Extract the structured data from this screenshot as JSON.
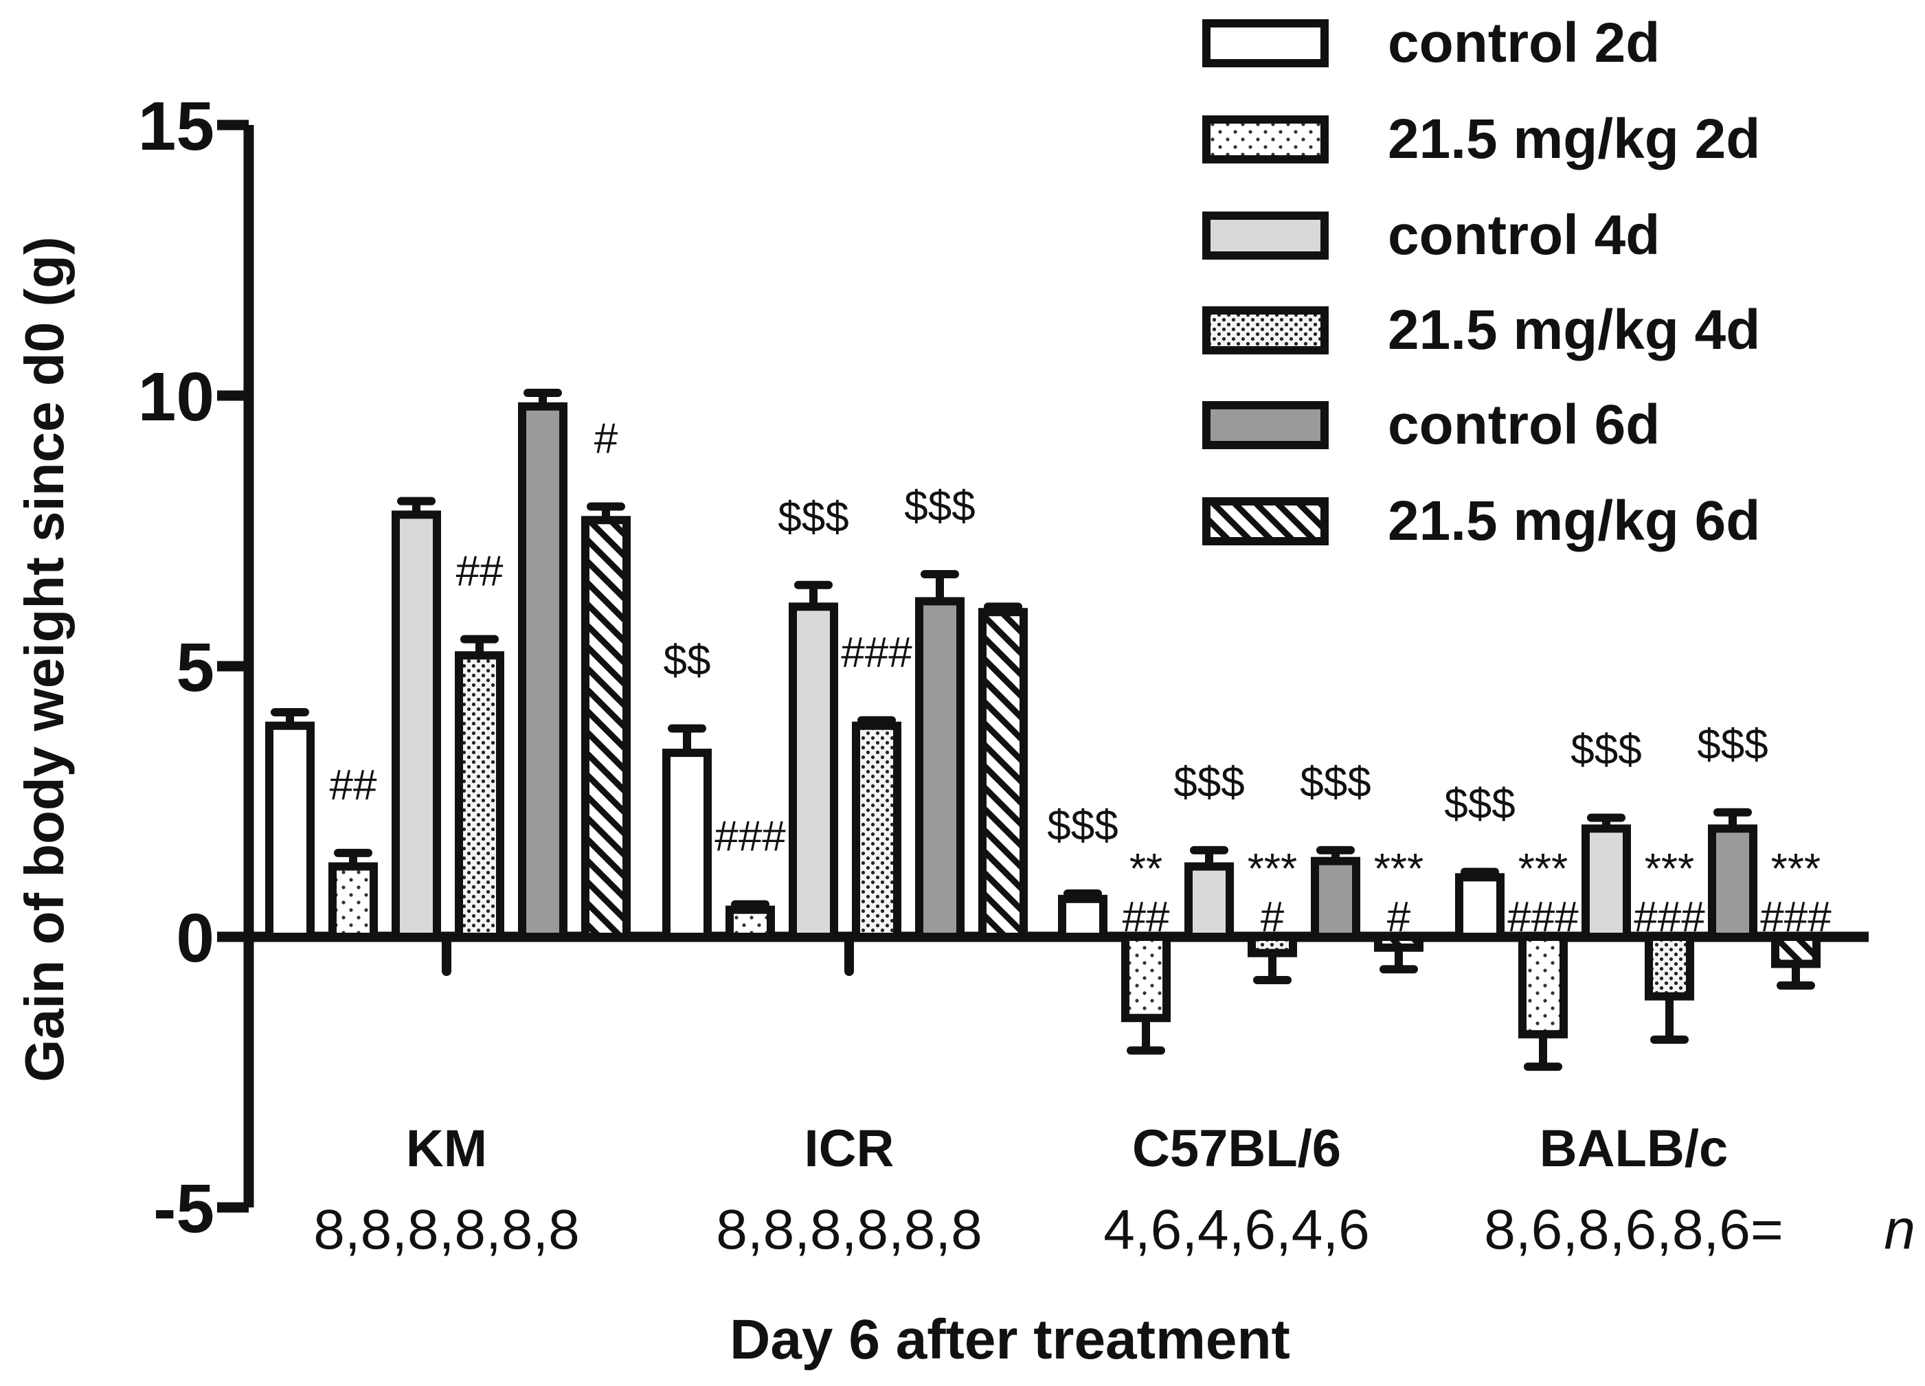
{
  "chart_data": {
    "type": "bar",
    "ylabel": "Gain of body weight since d0 (g)",
    "xlabel": "Day 6 after treatment",
    "ylim": [
      -5,
      15
    ],
    "yticks": [
      "15",
      "10",
      "5",
      "0",
      "-5"
    ],
    "yticks_values": [
      15,
      10,
      5,
      0,
      -5
    ],
    "categories": [
      "KM",
      "ICR",
      "C57BL/6",
      "BALB/c"
    ],
    "n_labels": [
      "8,8,8,8,8,8",
      "8,8,8,8,8,8",
      "4,6,4,6,4,6",
      "8,6,8,6,8,6="
    ],
    "n_suffix": "n",
    "series": [
      {
        "name": "control 2d",
        "pattern": "white",
        "values": [
          3.9,
          3.4,
          0.7,
          1.1
        ],
        "errors": [
          0.25,
          0.45,
          0.1,
          0.1
        ]
      },
      {
        "name": "21.5 mg/kg 2d",
        "pattern": "dots-sparse",
        "values": [
          1.3,
          0.5,
          -1.5,
          -1.8
        ],
        "errors": [
          0.25,
          0.1,
          0.6,
          0.6
        ]
      },
      {
        "name": "control 4d",
        "pattern": "light-gray",
        "values": [
          7.8,
          6.1,
          1.3,
          2.0
        ],
        "errors": [
          0.25,
          0.4,
          0.3,
          0.2
        ]
      },
      {
        "name": "21.5 mg/kg 4d",
        "pattern": "dots-dense",
        "values": [
          5.2,
          3.9,
          -0.3,
          -1.1
        ],
        "errors": [
          0.3,
          0.1,
          0.5,
          0.8
        ]
      },
      {
        "name": "control 6d",
        "pattern": "dark-gray",
        "values": [
          9.8,
          6.2,
          1.4,
          2.0
        ],
        "errors": [
          0.25,
          0.5,
          0.2,
          0.3
        ]
      },
      {
        "name": "21.5 mg/kg 6d",
        "pattern": "hatch",
        "values": [
          7.7,
          6.0,
          -0.2,
          -0.5
        ],
        "errors": [
          0.25,
          0.1,
          0.4,
          0.4
        ]
      }
    ],
    "annotations": [
      {
        "text": "##",
        "group": 0,
        "bar": 1,
        "line": 0
      },
      {
        "text": "##",
        "group": 0,
        "bar": 3,
        "line": 0
      },
      {
        "text": "#",
        "group": 0,
        "bar": 5,
        "line": 0
      },
      {
        "text": "$$",
        "group": 1,
        "bar": 0,
        "line": 0
      },
      {
        "text": "###",
        "group": 1,
        "bar": 1,
        "line": 0
      },
      {
        "text": "$$$",
        "group": 1,
        "bar": 2,
        "line": 0
      },
      {
        "text": "###",
        "group": 1,
        "bar": 3,
        "line": 0
      },
      {
        "text": "$$$",
        "group": 1,
        "bar": 4,
        "line": 0
      },
      {
        "text": "$$$",
        "group": 2,
        "bar": 0,
        "line": 0
      },
      {
        "text": "**",
        "group": 2,
        "bar": 1,
        "line": 0
      },
      {
        "text": "##",
        "group": 2,
        "bar": 1,
        "line": 1
      },
      {
        "text": "$$$",
        "group": 2,
        "bar": 2,
        "line": 0
      },
      {
        "text": "***",
        "group": 2,
        "bar": 3,
        "line": 0
      },
      {
        "text": "#",
        "group": 2,
        "bar": 3,
        "line": 1
      },
      {
        "text": "$$$",
        "group": 2,
        "bar": 4,
        "line": 0
      },
      {
        "text": "***",
        "group": 2,
        "bar": 5,
        "line": 0
      },
      {
        "text": "#",
        "group": 2,
        "bar": 5,
        "line": 1
      },
      {
        "text": "$$$",
        "group": 3,
        "bar": 0,
        "line": 0
      },
      {
        "text": "***",
        "group": 3,
        "bar": 1,
        "line": 0
      },
      {
        "text": "###",
        "group": 3,
        "bar": 1,
        "line": 1
      },
      {
        "text": "$$$",
        "group": 3,
        "bar": 2,
        "line": 0
      },
      {
        "text": "***",
        "group": 3,
        "bar": 3,
        "line": 0
      },
      {
        "text": "###",
        "group": 3,
        "bar": 3,
        "line": 1
      },
      {
        "text": "$$$",
        "group": 3,
        "bar": 4,
        "line": 0
      },
      {
        "text": "***",
        "group": 3,
        "bar": 5,
        "line": 0
      },
      {
        "text": "###",
        "group": 3,
        "bar": 5,
        "line": 1
      }
    ]
  }
}
